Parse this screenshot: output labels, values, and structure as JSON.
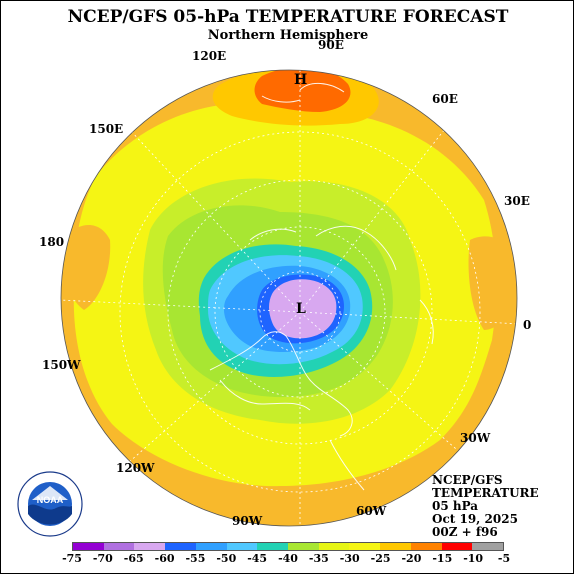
{
  "title": "NCEP/GFS 05-hPa TEMPERATURE FORECAST",
  "subtitle": "Northern Hemisphere",
  "longitude_labels": {
    "lon_90e": "90E",
    "lon_120e": "120E",
    "lon_60e": "60E",
    "lon_150e": "150E",
    "lon_30e": "30E",
    "lon_180": "180",
    "lon_0": "0",
    "lon_150w": "150W",
    "lon_30w": "30W",
    "lon_120w": "120W",
    "lon_90w": "90W",
    "lon_60w": "60W"
  },
  "markers": {
    "high": "H",
    "low": "L"
  },
  "info": {
    "model": "NCEP/GFS",
    "field": "TEMPERATURE",
    "level": "05 hPa",
    "date": "Oct 19, 2025",
    "run": "00Z + f96"
  },
  "colorbar": {
    "ticks": [
      "-75",
      "-70",
      "-65",
      "-60",
      "-55",
      "-50",
      "-45",
      "-40",
      "-35",
      "-30",
      "-25",
      "-20",
      "-15",
      "-10",
      "-5"
    ],
    "colors": [
      "#9400d3",
      "#b070e0",
      "#d8a8f0",
      "#1e64ff",
      "#30a0ff",
      "#50c8ff",
      "#22d2b4",
      "#a8e632",
      "#e6f514",
      "#f5f514",
      "#ffc800",
      "#ff8200",
      "#ff0000",
      "#a0a0a0"
    ]
  },
  "logo_text": "NOAA",
  "colors": {
    "ring_orange": "#f8b92c",
    "high_core": "#ff6a00",
    "low_core": "#d8a8f0"
  }
}
